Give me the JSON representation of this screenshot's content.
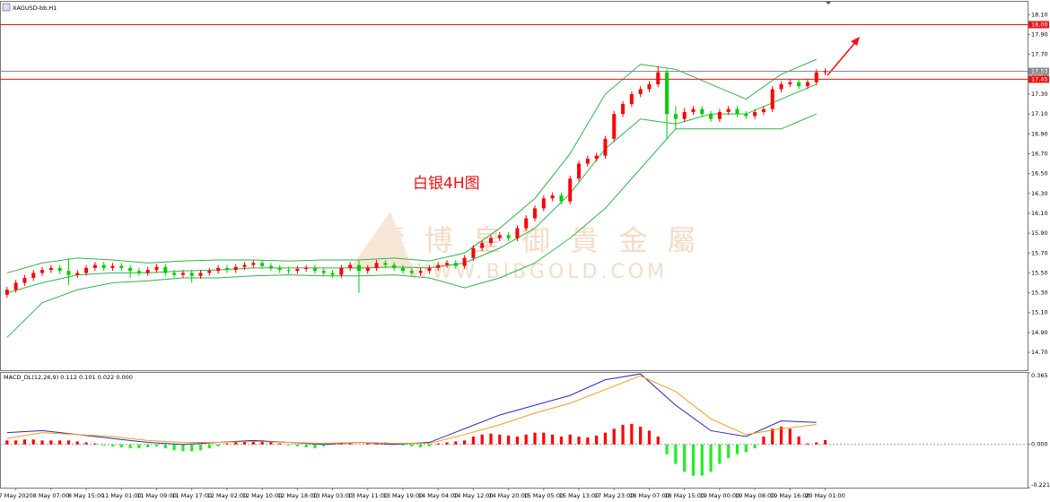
{
  "watermark": {
    "title": "鑄 博 皇 御 貴 金 屬",
    "url": "WWW.BIBGOLD.COM"
  },
  "chart_data": [
    {
      "type": "candlestick",
      "title": "XAGUSD-bb,H1",
      "annotation": "白银4H图",
      "up_color": "#ff0000",
      "down_color": "#00cc00",
      "open": [
        15.28,
        15.33,
        15.4,
        15.45,
        15.5,
        15.53,
        15.55,
        15.52,
        15.48,
        15.5,
        15.55,
        15.58,
        15.55,
        15.57,
        15.55,
        15.52,
        15.5,
        15.53,
        15.56,
        15.5,
        15.48,
        15.5,
        15.47,
        15.5,
        15.52,
        15.55,
        15.53,
        15.56,
        15.58,
        15.6,
        15.57,
        15.55,
        15.53,
        15.52,
        15.54,
        15.55,
        15.52,
        15.5,
        15.48,
        15.55,
        15.58,
        15.52,
        15.55,
        15.6,
        15.58,
        15.55,
        15.52,
        15.5,
        15.52,
        15.55,
        15.58,
        15.6,
        15.57,
        15.65,
        15.75,
        15.8,
        15.85,
        15.88,
        15.85,
        15.95,
        16.05,
        16.15,
        16.25,
        16.28,
        16.22,
        16.45,
        16.6,
        16.65,
        16.68,
        16.85,
        17.1,
        17.2,
        17.3,
        17.35,
        17.4,
        17.52,
        17.1,
        17.05,
        17.12,
        17.15,
        17.1,
        17.05,
        17.12,
        17.15,
        17.1,
        17.08,
        17.12,
        17.15,
        17.35,
        17.4,
        17.42,
        17.38,
        17.42,
        17.52
      ],
      "high": [
        15.36,
        15.43,
        15.48,
        15.53,
        15.56,
        15.58,
        15.58,
        15.65,
        15.53,
        15.58,
        15.61,
        15.61,
        15.6,
        15.6,
        15.58,
        15.55,
        15.56,
        15.59,
        15.59,
        15.53,
        15.53,
        15.53,
        15.53,
        15.55,
        15.58,
        15.58,
        15.59,
        15.61,
        15.63,
        15.63,
        15.6,
        15.58,
        15.56,
        15.57,
        15.58,
        15.58,
        15.55,
        15.53,
        15.58,
        15.61,
        15.63,
        15.58,
        15.63,
        15.63,
        15.61,
        15.58,
        15.55,
        15.55,
        15.58,
        15.61,
        15.63,
        15.63,
        15.68,
        15.78,
        15.83,
        15.88,
        15.91,
        15.91,
        15.98,
        16.08,
        16.18,
        16.28,
        16.31,
        16.31,
        16.48,
        16.63,
        16.68,
        16.71,
        16.88,
        17.13,
        17.23,
        17.33,
        17.38,
        17.43,
        17.58,
        17.55,
        17.18,
        17.16,
        17.18,
        17.18,
        17.13,
        17.15,
        17.18,
        17.18,
        17.13,
        17.15,
        17.18,
        17.38,
        17.43,
        17.45,
        17.45,
        17.45,
        17.55,
        17.56
      ],
      "low": [
        15.25,
        15.3,
        15.37,
        15.42,
        15.47,
        15.5,
        15.49,
        15.38,
        15.45,
        15.47,
        15.52,
        15.52,
        15.52,
        15.52,
        15.45,
        15.47,
        15.47,
        15.5,
        15.47,
        15.45,
        15.45,
        15.4,
        15.44,
        15.47,
        15.49,
        15.5,
        15.5,
        15.53,
        15.55,
        15.54,
        15.52,
        15.5,
        15.49,
        15.49,
        15.51,
        15.49,
        15.47,
        15.45,
        15.45,
        15.52,
        15.3,
        15.49,
        15.52,
        15.55,
        15.52,
        15.49,
        15.47,
        15.47,
        15.49,
        15.52,
        15.55,
        15.54,
        15.54,
        15.62,
        15.72,
        15.77,
        15.82,
        15.82,
        15.82,
        15.92,
        16.02,
        16.12,
        16.22,
        16.19,
        16.19,
        16.42,
        16.57,
        16.62,
        16.65,
        16.82,
        17.07,
        17.17,
        17.27,
        17.32,
        17.37,
        16.85,
        16.95,
        17.02,
        17.09,
        17.07,
        17.02,
        17.02,
        17.09,
        17.07,
        17.05,
        17.05,
        17.09,
        17.12,
        17.32,
        17.37,
        17.35,
        17.35,
        17.39,
        17.49
      ],
      "close": [
        15.33,
        15.4,
        15.45,
        15.5,
        15.53,
        15.55,
        15.52,
        15.48,
        15.5,
        15.55,
        15.58,
        15.55,
        15.57,
        15.55,
        15.52,
        15.5,
        15.53,
        15.56,
        15.5,
        15.48,
        15.5,
        15.47,
        15.5,
        15.52,
        15.55,
        15.53,
        15.56,
        15.58,
        15.6,
        15.57,
        15.55,
        15.53,
        15.52,
        15.54,
        15.55,
        15.52,
        15.5,
        15.48,
        15.55,
        15.58,
        15.52,
        15.55,
        15.6,
        15.58,
        15.55,
        15.52,
        15.5,
        15.52,
        15.55,
        15.58,
        15.6,
        15.57,
        15.65,
        15.75,
        15.8,
        15.85,
        15.88,
        15.85,
        15.95,
        16.05,
        16.15,
        16.25,
        16.28,
        16.22,
        16.45,
        16.6,
        16.65,
        16.68,
        16.85,
        17.1,
        17.2,
        17.3,
        17.35,
        17.4,
        17.52,
        17.1,
        17.05,
        17.12,
        17.15,
        17.1,
        17.05,
        17.12,
        17.15,
        17.1,
        17.08,
        17.12,
        17.15,
        17.35,
        17.4,
        17.42,
        17.38,
        17.42,
        17.52,
        17.53
      ],
      "bands": {
        "color": "#33b24a",
        "x": [
          0,
          4,
          8,
          12,
          16,
          20,
          24,
          28,
          32,
          36,
          40,
          44,
          48,
          52,
          56,
          60,
          64,
          68,
          72,
          76,
          80,
          84,
          88,
          92
        ],
        "series": [
          {
            "values": [
              15.5,
              15.6,
              15.65,
              15.63,
              15.6,
              15.62,
              15.63,
              15.63,
              15.62,
              15.63,
              15.63,
              15.65,
              15.62,
              15.7,
              15.95,
              16.25,
              16.7,
              17.3,
              17.6,
              17.55,
              17.4,
              17.25,
              17.5,
              17.65
            ]
          },
          {
            "values": [
              15.3,
              15.4,
              15.48,
              15.5,
              15.5,
              15.52,
              15.53,
              15.55,
              15.55,
              15.55,
              15.55,
              15.56,
              15.55,
              15.6,
              15.75,
              15.95,
              16.3,
              16.75,
              17.05,
              17.0,
              17.1,
              17.1,
              17.25,
              17.4
            ]
          },
          {
            "values": [
              14.85,
              15.2,
              15.33,
              15.4,
              15.42,
              15.45,
              15.45,
              15.47,
              15.48,
              15.47,
              15.47,
              15.48,
              15.45,
              15.35,
              15.45,
              15.6,
              15.85,
              16.15,
              16.55,
              16.95,
              16.95,
              16.95,
              16.95,
              17.1
            ]
          }
        ]
      },
      "hlines": [
        {
          "value": 18.0,
          "label": "18.00",
          "color": "#ee1111"
        },
        {
          "value": 17.53,
          "label": "17.53",
          "color": "#8a8a8a"
        },
        {
          "value": 17.45,
          "label": "17.45",
          "color": "#ee1111"
        }
      ],
      "xlim": [
        -0.8,
        116
      ],
      "ylim": [
        14.52,
        18.23
      ],
      "yticks": [
        {
          "value": 18.1,
          "label": "18.10"
        },
        {
          "value": 17.9,
          "label": "17.90"
        },
        {
          "value": 17.7,
          "label": "17.70"
        },
        {
          "value": 17.5,
          "label": "17.50"
        },
        {
          "value": 17.3,
          "label": "17.30"
        },
        {
          "value": 17.1,
          "label": "17.10"
        },
        {
          "value": 16.9,
          "label": "16.90"
        },
        {
          "value": 16.7,
          "label": "16.70"
        },
        {
          "value": 16.5,
          "label": "16.50"
        },
        {
          "value": 16.3,
          "label": "16.30"
        },
        {
          "value": 16.1,
          "label": "16.10"
        },
        {
          "value": 15.9,
          "label": "15.90"
        },
        {
          "value": 15.7,
          "label": "15.70"
        },
        {
          "value": 15.5,
          "label": "15.50"
        },
        {
          "value": 15.3,
          "label": "15.30"
        },
        {
          "value": 15.1,
          "label": "15.10"
        },
        {
          "value": 14.9,
          "label": "14.90"
        },
        {
          "value": 14.7,
          "label": "14.70"
        }
      ]
    },
    {
      "type": "macd",
      "title": "MACD_DL(12,26,9) 0.112 0.101 0.022 0.000",
      "up_color": "#ff0000",
      "down_color": "#22ee22",
      "histogram": [
        0.02,
        0.02,
        0.025,
        0.025,
        0.02,
        0.02,
        0.02,
        0.02,
        0.015,
        0.01,
        0.005,
        -0.005,
        -0.01,
        -0.015,
        -0.02,
        -0.02,
        -0.015,
        -0.01,
        -0.02,
        -0.03,
        -0.035,
        -0.035,
        -0.03,
        -0.02,
        -0.01,
        0.005,
        0.01,
        0.015,
        0.02,
        0.02,
        0.015,
        0.005,
        -0.005,
        -0.01,
        -0.015,
        -0.02,
        -0.01,
        0.005,
        0.01,
        0.005,
        0.0,
        0.005,
        0.01,
        0.01,
        0.005,
        -0.005,
        -0.01,
        -0.015,
        -0.01,
        0.005,
        0.01,
        0.015,
        0.02,
        0.04,
        0.05,
        0.055,
        0.05,
        0.045,
        0.04,
        0.05,
        0.06,
        0.06,
        0.05,
        0.04,
        0.05,
        0.04,
        0.035,
        0.045,
        0.06,
        0.08,
        0.1,
        0.105,
        0.09,
        0.07,
        0.04,
        -0.05,
        -0.1,
        -0.14,
        -0.16,
        -0.16,
        -0.14,
        -0.1,
        -0.07,
        -0.05,
        -0.04,
        -0.02,
        0.04,
        0.08,
        0.09,
        0.08,
        0.04,
        0.005,
        0.01,
        0.022
      ],
      "x": [
        0,
        4,
        8,
        12,
        16,
        20,
        24,
        28,
        32,
        36,
        40,
        44,
        48,
        52,
        56,
        60,
        64,
        68,
        72,
        76,
        80,
        84,
        88,
        92
      ],
      "series": [
        {
          "color": "#2b2bb0",
          "values": [
            0.06,
            0.07,
            0.05,
            0.03,
            0.01,
            0.0,
            0.01,
            0.02,
            0.01,
            0.0,
            0.01,
            0.0,
            0.01,
            0.08,
            0.15,
            0.2,
            0.25,
            0.33,
            0.36,
            0.2,
            0.07,
            0.04,
            0.12,
            0.112
          ]
        },
        {
          "color": "#ff9a1a",
          "values": [
            0.03,
            0.06,
            0.05,
            0.04,
            0.02,
            0.01,
            0.01,
            0.015,
            0.01,
            0.005,
            0.01,
            0.005,
            0.005,
            0.05,
            0.1,
            0.16,
            0.21,
            0.28,
            0.35,
            0.27,
            0.13,
            0.05,
            0.08,
            0.101
          ]
        }
      ],
      "xlim": [
        -0.8,
        116
      ],
      "ylim": [
        -0.221,
        0.365
      ],
      "yticks": [
        0.365,
        {
          "value": 0,
          "label": "0.000"
        },
        -0.221
      ],
      "xticks": [
        {
          "value": 1,
          "label": "7 May 2020"
        },
        {
          "value": 5,
          "label": "8 May 07:00"
        },
        {
          "value": 9,
          "label": "8 May 15:00"
        },
        {
          "value": 13,
          "label": "11 May 01:00"
        },
        {
          "value": 17,
          "label": "11 May 09:00"
        },
        {
          "value": 21,
          "label": "11 May 17:00"
        },
        {
          "value": 25,
          "label": "12 May 02:00"
        },
        {
          "value": 29,
          "label": "12 May 10:00"
        },
        {
          "value": 33,
          "label": "12 May 18:00"
        },
        {
          "value": 37,
          "label": "13 May 03:00"
        },
        {
          "value": 41,
          "label": "13 May 11:00"
        },
        {
          "value": 45,
          "label": "13 May 19:00"
        },
        {
          "value": 49,
          "label": "14 May 04:00"
        },
        {
          "value": 53,
          "label": "14 May 12:00"
        },
        {
          "value": 57,
          "label": "14 May 20:00"
        },
        {
          "value": 61,
          "label": "15 May 05:00"
        },
        {
          "value": 65,
          "label": "15 May 13:00"
        },
        {
          "value": 69,
          "label": "17 May 23:00"
        },
        {
          "value": 73,
          "label": "18 May 07:00"
        },
        {
          "value": 77,
          "label": "18 May 15:00"
        },
        {
          "value": 81,
          "label": "19 May 00:00"
        },
        {
          "value": 85,
          "label": "19 May 08:00"
        },
        {
          "value": 89,
          "label": "19 May 16:00"
        },
        {
          "value": 93,
          "label": "20 May 01:00"
        }
      ]
    }
  ]
}
